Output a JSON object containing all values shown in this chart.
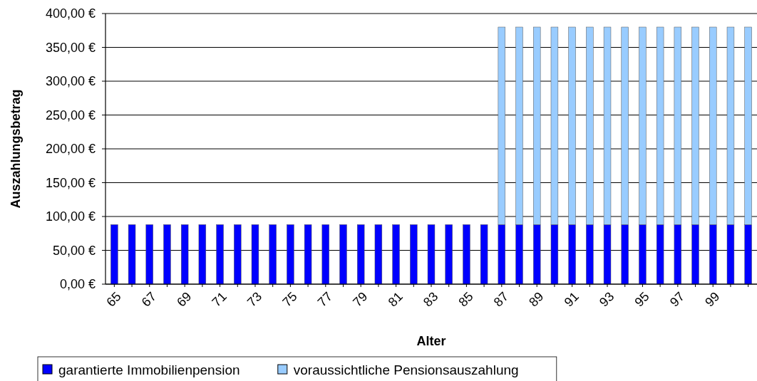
{
  "chart_data": {
    "type": "bar",
    "stacked": true,
    "xlabel": "Alter",
    "ylabel": "Auszahlungsbetrag",
    "categories": [
      "65",
      null,
      "67",
      null,
      "69",
      null,
      "71",
      null,
      "73",
      null,
      "75",
      null,
      "77",
      null,
      "79",
      null,
      "81",
      null,
      "83",
      null,
      "85",
      null,
      "87",
      null,
      "89",
      null,
      "91",
      null,
      "93",
      null,
      "95",
      null,
      "97",
      null,
      "99",
      null,
      null
    ],
    "series": [
      {
        "name": "garantierte Immobilienpension",
        "color": "#0000ff",
        "values": [
          88,
          88,
          88,
          88,
          88,
          88,
          88,
          88,
          88,
          88,
          88,
          88,
          88,
          88,
          88,
          88,
          88,
          88,
          88,
          88,
          88,
          88,
          88,
          88,
          88,
          88,
          88,
          88,
          88,
          88,
          88,
          88,
          88,
          88,
          88,
          88,
          88
        ]
      },
      {
        "name": "voraussichtliche Pensionsauszahlung",
        "color": "#99ccff",
        "values": [
          0,
          0,
          0,
          0,
          0,
          0,
          0,
          0,
          0,
          0,
          0,
          0,
          0,
          0,
          0,
          0,
          0,
          0,
          0,
          0,
          0,
          0,
          292,
          292,
          292,
          292,
          292,
          292,
          292,
          292,
          292,
          292,
          292,
          292,
          292,
          292,
          292
        ]
      }
    ],
    "ylim": [
      0,
      400
    ],
    "yticks": [
      {
        "value": 0,
        "label": "0,00 €"
      },
      {
        "value": 50,
        "label": "50,00 €"
      },
      {
        "value": 100,
        "label": "100,00 €"
      },
      {
        "value": 150,
        "label": "150,00 €"
      },
      {
        "value": 200,
        "label": "200,00 €"
      },
      {
        "value": 250,
        "label": "250,00 €"
      },
      {
        "value": 300,
        "label": "300,00 €"
      },
      {
        "value": 350,
        "label": "350,00 €"
      },
      {
        "value": 400,
        "label": "400,00 €"
      }
    ],
    "grid": "y",
    "legend": "bottom left"
  }
}
